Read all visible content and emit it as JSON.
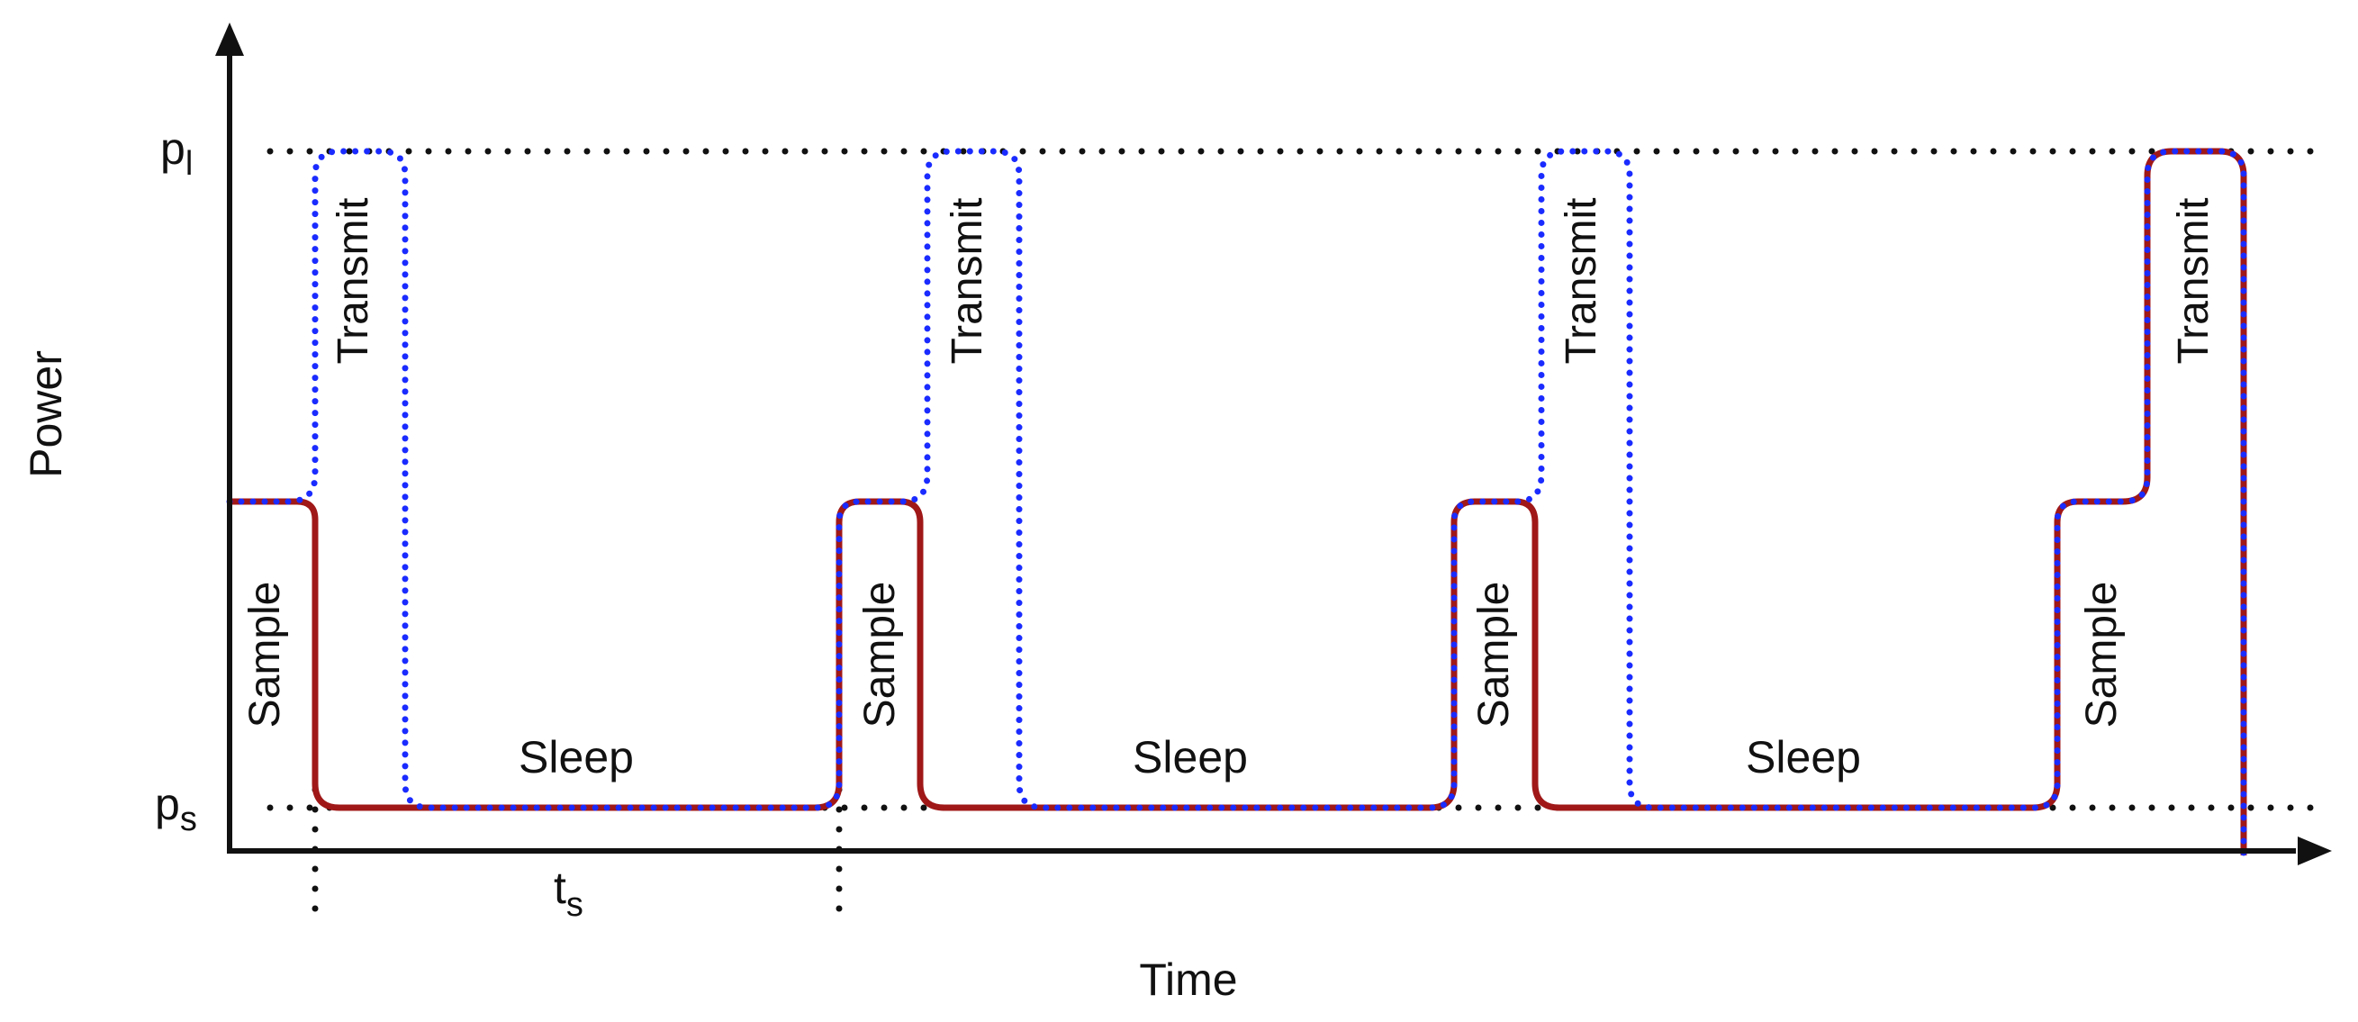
{
  "axes": {
    "x_label": "Time",
    "y_label": "Power",
    "y_ticks": {
      "high": "p",
      "high_sub": "l",
      "low": "p",
      "low_sub": "s"
    },
    "interval": {
      "label": "t",
      "label_sub": "s"
    }
  },
  "phases": {
    "sample": "Sample",
    "transmit": "Transmit",
    "sleep": "Sleep"
  },
  "colors": {
    "solid_trace": "#a01818",
    "dotted_trace": "#1a2bff",
    "guide": "#111111",
    "text": "#111111"
  }
}
